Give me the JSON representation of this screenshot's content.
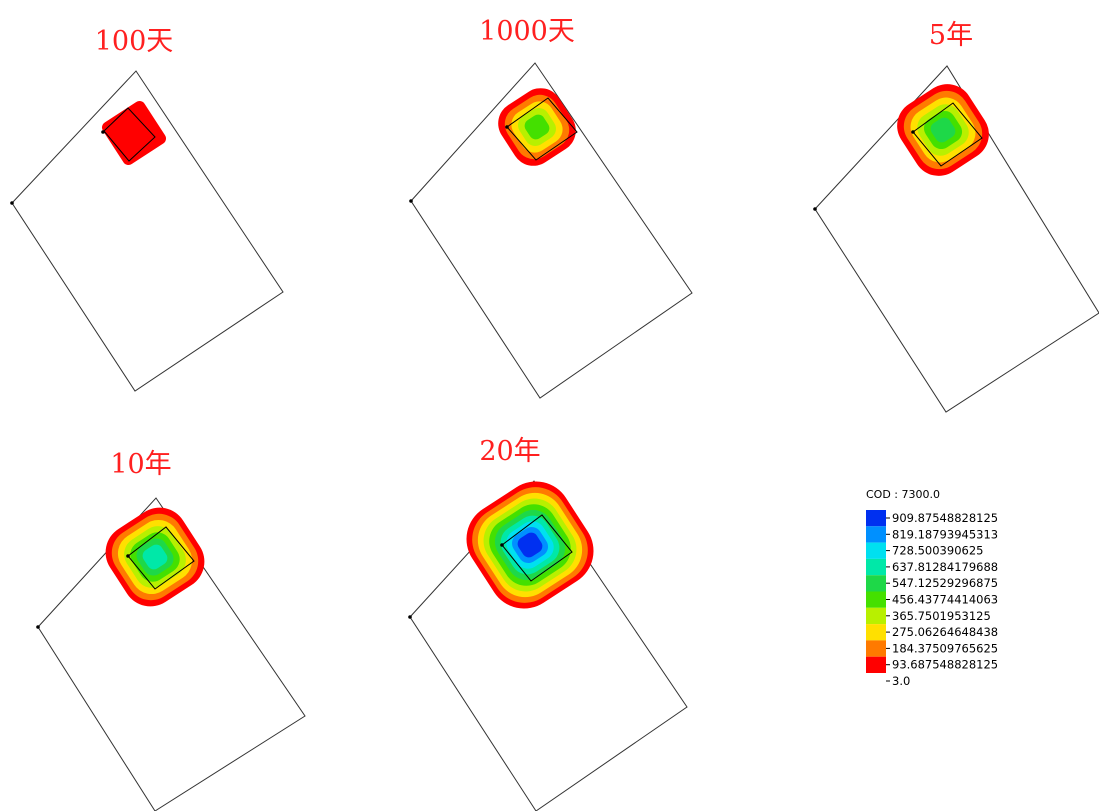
{
  "colors": {
    "c0": "#ff0000",
    "c1": "#ff7a00",
    "c2": "#ffe000",
    "c3": "#b8f000",
    "c4": "#44e000",
    "c5": "#1ed848",
    "c6": "#00e8a8",
    "c7": "#00e0f0",
    "c8": "#0090ff",
    "c9": "#0030f0",
    "title": "#ff2020"
  },
  "panels": [
    {
      "title": "100天"
    },
    {
      "title": "1000天"
    },
    {
      "title": "5年"
    },
    {
      "title": "10年"
    },
    {
      "title": "20年"
    }
  ],
  "legend": {
    "title": "COD : 7300.0",
    "entries": [
      "909.87548828125",
      "819.18793945313",
      "728.500390625",
      "637.81284179688",
      "547.12529296875",
      "456.43774414063",
      "365.7501953125",
      "275.06264648438",
      "184.37509765625",
      "93.687548828125",
      "3.0"
    ]
  }
}
